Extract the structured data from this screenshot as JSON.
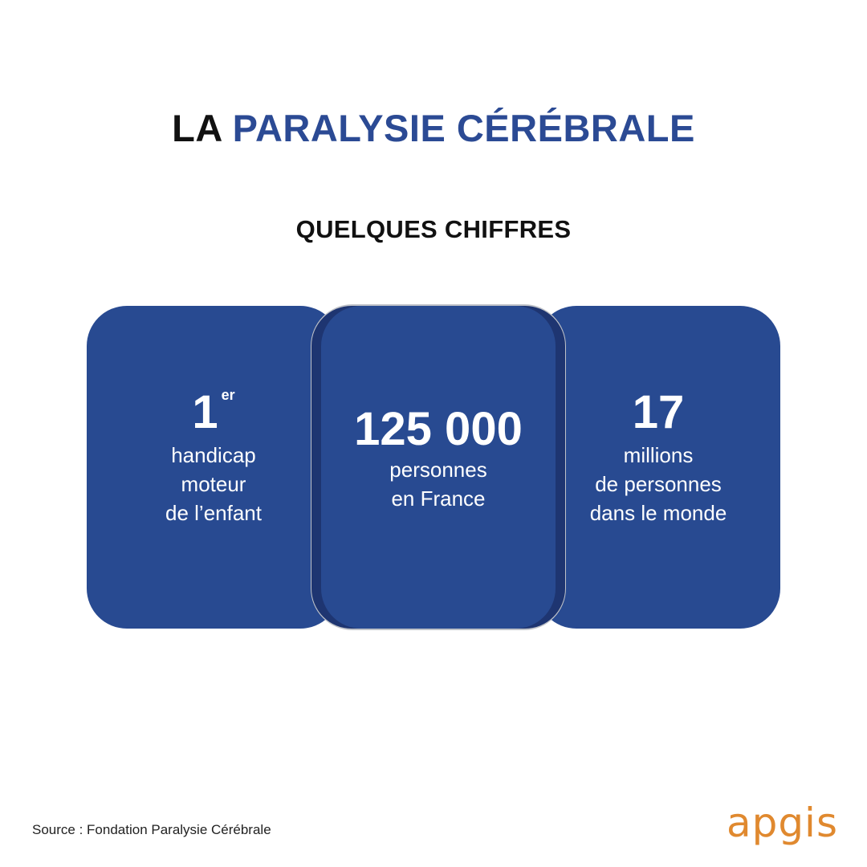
{
  "title": {
    "prefix": "LA",
    "accent": "PARALYSIE CÉRÉBRALE"
  },
  "subtitle": "QUELQUES CHIFFRES",
  "stats": [
    {
      "figure": "1",
      "superscript": "er",
      "lines": [
        "handicap",
        "moteur",
        "de l’enfant"
      ]
    },
    {
      "figure": "125 000",
      "lines": [
        "personnes",
        "en France"
      ]
    },
    {
      "figure": "17",
      "lines": [
        "millions",
        "de personnes",
        "dans le monde"
      ]
    }
  ],
  "source": "Source : Fondation Paralysie Cérébrale",
  "logo": "apgis",
  "colors": {
    "accent": "#2b4a94",
    "card": "#284a91",
    "logo": "#e0892f"
  }
}
